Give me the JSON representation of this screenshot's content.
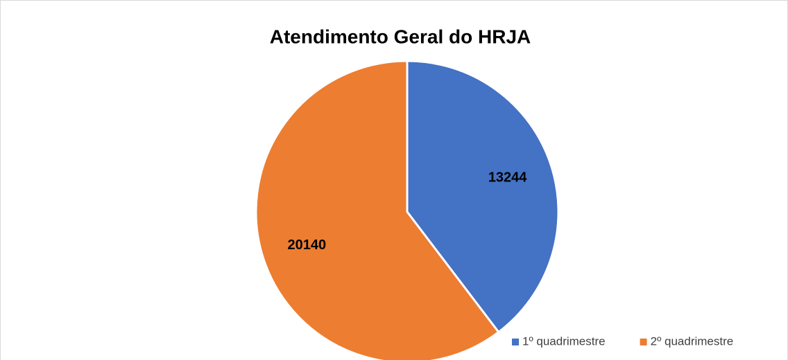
{
  "chart_data": {
    "type": "pie",
    "title": "Atendimento Geral do HRJA",
    "categories": [
      "1º quadrimestre",
      "2º quadrimestre"
    ],
    "values": [
      13244,
      20140
    ],
    "colors": [
      "#4472c4",
      "#ed7d31"
    ],
    "legend": "bottom-right"
  }
}
